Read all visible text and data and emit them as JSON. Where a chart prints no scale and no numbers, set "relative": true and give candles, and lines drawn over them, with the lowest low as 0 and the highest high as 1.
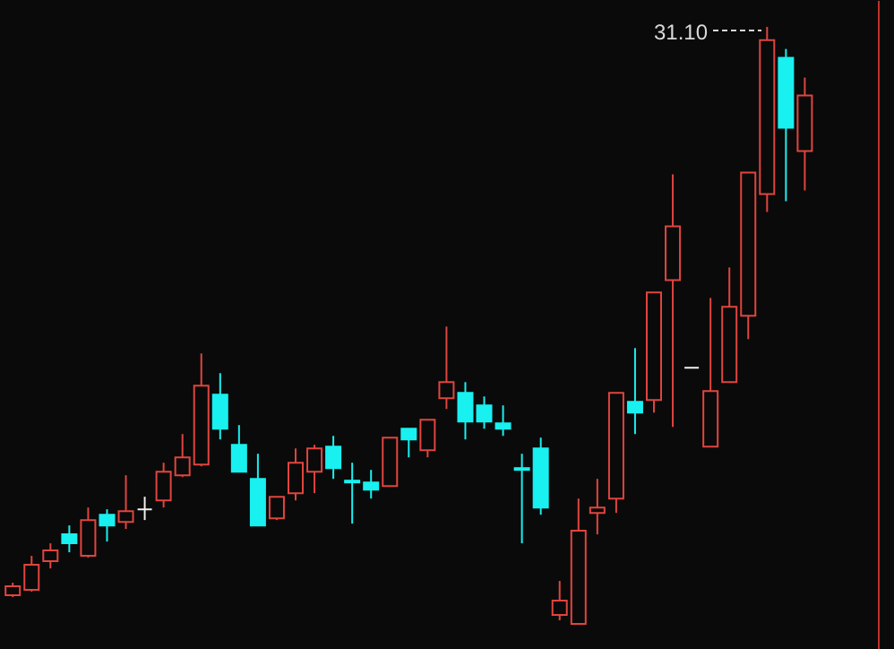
{
  "chart_data": {
    "type": "candlestick",
    "relative": true,
    "categories": [
      null,
      null,
      null,
      null,
      null,
      null,
      null,
      null,
      null,
      null,
      null,
      null,
      null,
      null,
      null,
      null,
      null,
      null,
      null,
      null,
      null,
      null,
      null,
      null,
      null,
      null,
      null,
      null,
      null,
      null,
      null,
      null,
      null,
      null,
      null,
      null,
      null,
      null,
      null,
      null,
      null,
      null,
      null
    ],
    "ohlc": [
      [
        0.048,
        0.069,
        0.045,
        0.063
      ],
      [
        0.057,
        0.114,
        0.054,
        0.099
      ],
      [
        0.105,
        0.135,
        0.093,
        0.123
      ],
      [
        0.15,
        0.165,
        0.12,
        0.135
      ],
      [
        0.114,
        0.195,
        0.111,
        0.174
      ],
      [
        0.183,
        0.192,
        0.138,
        0.165
      ],
      [
        0.171,
        0.249,
        0.159,
        0.189
      ],
      [
        0.192,
        0.213,
        0.174,
        0.192
      ],
      [
        0.207,
        0.27,
        0.195,
        0.255
      ],
      [
        0.249,
        0.318,
        0.246,
        0.279
      ],
      [
        0.267,
        0.453,
        0.264,
        0.399
      ],
      [
        0.384,
        0.42,
        0.309,
        0.327
      ],
      [
        0.3,
        0.333,
        0.255,
        0.255
      ],
      [
        0.243,
        0.285,
        0.165,
        0.165
      ],
      [
        0.177,
        0.213,
        0.174,
        0.213
      ],
      [
        0.219,
        0.294,
        0.207,
        0.27
      ],
      [
        0.255,
        0.3,
        0.219,
        0.294
      ],
      [
        0.297,
        0.315,
        0.243,
        0.261
      ],
      [
        0.24,
        0.27,
        0.168,
        0.237
      ],
      [
        0.237,
        0.258,
        0.21,
        0.225
      ],
      [
        0.231,
        0.312,
        0.231,
        0.312
      ],
      [
        0.327,
        0.327,
        0.279,
        0.309
      ],
      [
        0.291,
        0.342,
        0.279,
        0.342
      ],
      [
        0.378,
        0.498,
        0.36,
        0.405
      ],
      [
        0.387,
        0.405,
        0.309,
        0.339
      ],
      [
        0.366,
        0.381,
        0.327,
        0.339
      ],
      [
        0.336,
        0.366,
        0.315,
        0.327
      ],
      [
        0.261,
        0.285,
        0.135,
        0.258
      ],
      [
        0.294,
        0.312,
        0.183,
        0.195
      ],
      [
        0.015,
        0.072,
        0.006,
        0.039
      ],
      [
        0.0,
        0.21,
        0.0,
        0.156
      ],
      [
        0.186,
        0.243,
        0.15,
        0.195
      ],
      [
        0.21,
        0.387,
        0.186,
        0.387
      ],
      [
        0.372,
        0.462,
        0.318,
        0.354
      ],
      [
        0.375,
        0.555,
        0.354,
        0.555
      ],
      [
        0.576,
        0.753,
        0.33,
        0.666
      ],
      [
        0.429,
        0.429,
        0.429,
        0.429
      ],
      [
        0.297,
        0.546,
        0.297,
        0.39
      ],
      [
        0.405,
        0.597,
        0.405,
        0.531
      ],
      [
        0.516,
        0.756,
        0.477,
        0.756
      ],
      [
        0.72,
        1.0,
        0.69,
        0.978
      ],
      [
        0.948,
        0.963,
        0.708,
        0.831
      ],
      [
        0.792,
        0.915,
        0.726,
        0.885
      ]
    ],
    "colors": [
      "#e0453f",
      "#e0453f",
      "#e0453f",
      "#19f0f0",
      "#e0453f",
      "#19f0f0",
      "#e0453f",
      "#f0f0f0",
      "#e0453f",
      "#e0453f",
      "#e0453f",
      "#19f0f0",
      "#19f0f0",
      "#19f0f0",
      "#e0453f",
      "#e0453f",
      "#e0453f",
      "#19f0f0",
      "#19f0f0",
      "#19f0f0",
      "#e0453f",
      "#19f0f0",
      "#e0453f",
      "#e0453f",
      "#19f0f0",
      "#19f0f0",
      "#19f0f0",
      "#19f0f0",
      "#19f0f0",
      "#e0453f",
      "#e0453f",
      "#e0453f",
      "#e0453f",
      "#19f0f0",
      "#e0453f",
      "#e0453f",
      "#f0f0f0",
      "#e0453f",
      "#e0453f",
      "#e0453f",
      "#e0453f",
      "#19f0f0",
      "#e0453f"
    ],
    "annotations": [
      "31.10"
    ]
  }
}
